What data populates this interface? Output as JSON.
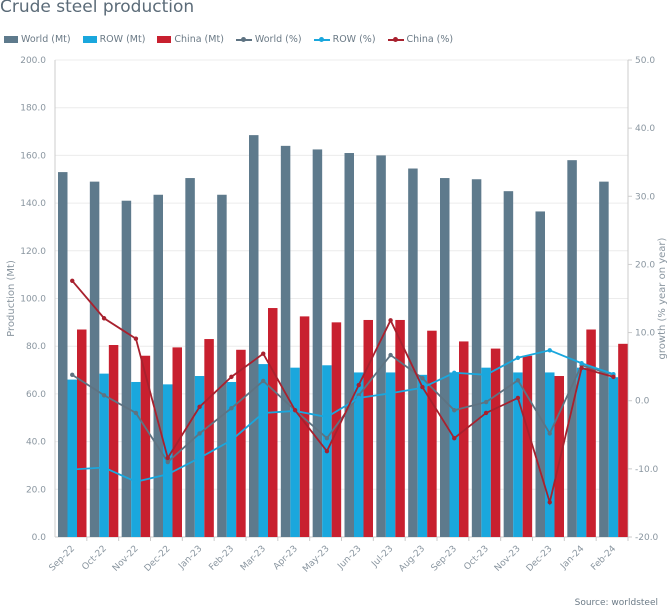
{
  "chart_data": {
    "type": "bar",
    "title": "Crude steel production",
    "ylabel": "Production (Mt)",
    "y2label": "growth (% year on year)",
    "ylim": [
      0,
      200
    ],
    "y2lim": [
      -20,
      50
    ],
    "yticks": [
      "0.0",
      "20.0",
      "40.0",
      "60.0",
      "80.0",
      "100.0",
      "120.0",
      "140.0",
      "160.0",
      "180.0",
      "200.0"
    ],
    "y2ticks": [
      "-20.0",
      "-10.0",
      "0.0",
      "10.0",
      "20.0",
      "30.0",
      "40.0",
      "50.0"
    ],
    "grid": true,
    "legend_position": "top-left",
    "categories": [
      "Sep-22",
      "Oct-22",
      "Nov-22",
      "Dec-22",
      "Jan-23",
      "Feb-23",
      "Mar-23",
      "Apr-23",
      "May-23",
      "Jun-23",
      "Jul-23",
      "Aug-23",
      "Sep-23",
      "Oct-23",
      "Nov-23",
      "Dec-23",
      "Jan-24",
      "Feb-24"
    ],
    "bar_series": [
      {
        "name": "World (Mt)",
        "color": "#5e7a8c",
        "values": [
          153,
          149,
          141,
          143.5,
          150.5,
          143.5,
          168.5,
          164,
          162.5,
          161,
          160,
          154.5,
          150.5,
          150,
          145,
          136.5,
          158,
          149
        ]
      },
      {
        "name": "ROW (Mt)",
        "color": "#1aa7dd",
        "values": [
          66,
          68.5,
          65,
          64,
          67.5,
          65,
          72.5,
          71,
          72,
          69,
          69,
          68,
          69,
          71,
          69,
          69,
          71,
          67
        ]
      },
      {
        "name": "China (Mt)",
        "color": "#c8202f",
        "values": [
          87,
          80.5,
          76,
          79.5,
          83,
          78.5,
          96,
          92.5,
          90,
          91,
          91,
          86.5,
          82,
          79,
          76,
          67.5,
          87,
          81
        ]
      }
    ],
    "line_series": [
      {
        "name": "World (%)",
        "color": "#5e7382",
        "axis": "right",
        "values": [
          3.8,
          0.8,
          -1.8,
          -9.0,
          -4.8,
          -1.1,
          2.9,
          -1.4,
          -5.5,
          0.8,
          6.7,
          3.3,
          -1.4,
          -0.2,
          3.0,
          -4.8,
          5.2,
          3.8
        ]
      },
      {
        "name": "ROW (%)",
        "color": "#1aa7dd",
        "axis": "right",
        "values": [
          -10.1,
          -9.8,
          -11.9,
          -10.8,
          -8.4,
          -5.8,
          -1.8,
          -1.5,
          -2.4,
          0.4,
          1.1,
          1.9,
          4.1,
          3.8,
          6.3,
          7.4,
          5.5,
          3.9
        ]
      },
      {
        "name": "China (%)",
        "color": "#a8212e",
        "axis": "right",
        "values": [
          17.6,
          12.1,
          9.1,
          -8.4,
          -0.9,
          3.5,
          6.9,
          -1.4,
          -7.4,
          2.3,
          11.8,
          2.0,
          -5.5,
          -1.8,
          0.4,
          -14.9,
          4.8,
          3.5
        ]
      }
    ],
    "source": "Source: worldsteel"
  }
}
